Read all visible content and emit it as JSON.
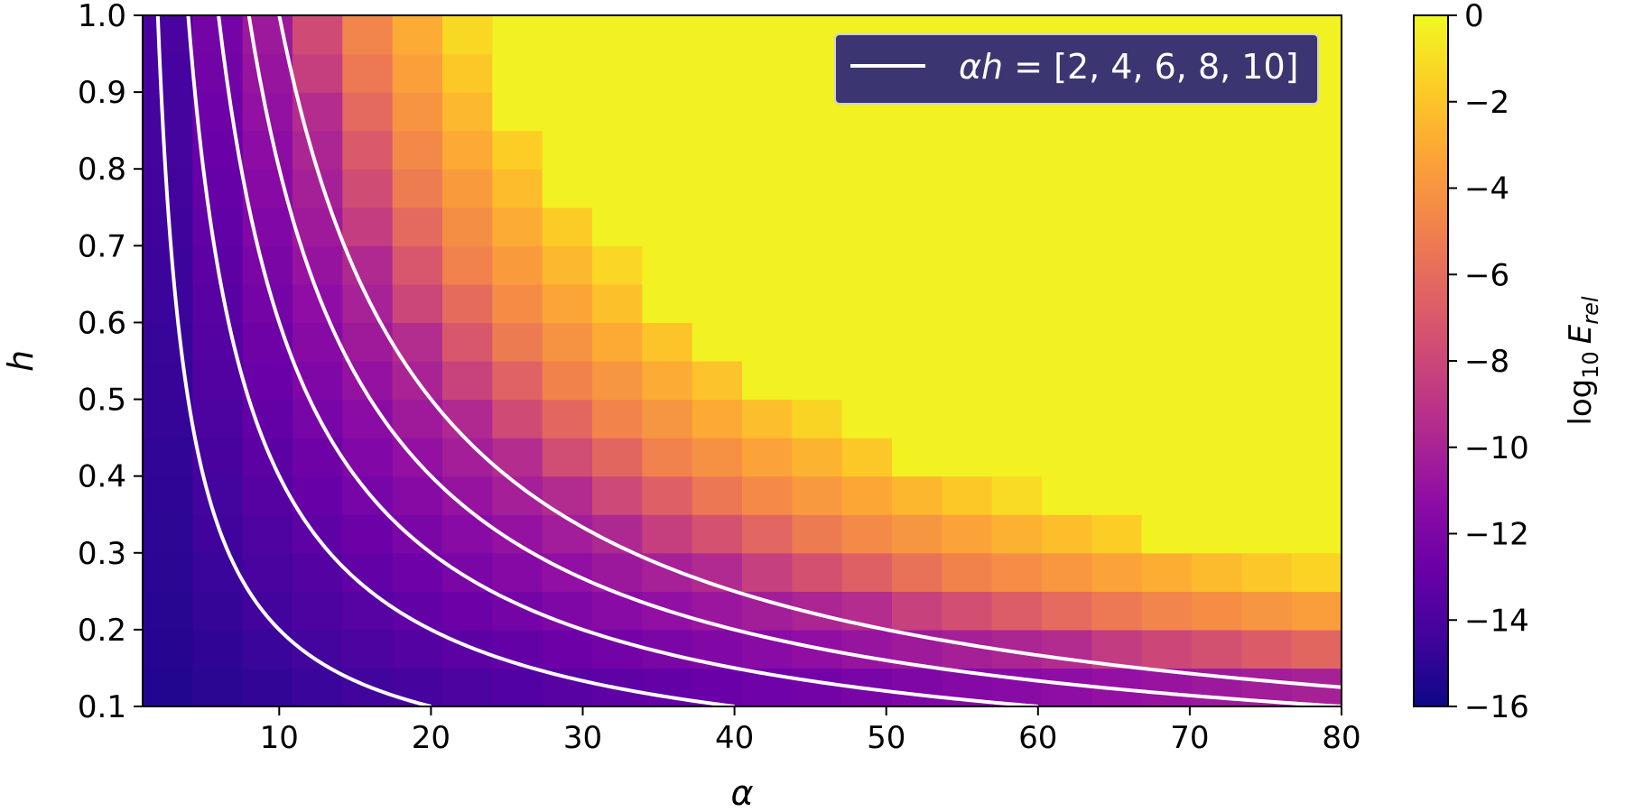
{
  "chart_data": {
    "type": "heatmap",
    "xlabel": "α",
    "ylabel": "h",
    "xlim": [
      1,
      80
    ],
    "ylim": [
      0.1,
      1.0
    ],
    "x_ticks": [
      10,
      20,
      30,
      40,
      50,
      60,
      70,
      80
    ],
    "x_tick_labels": [
      "10",
      "20",
      "30",
      "40",
      "50",
      "60",
      "70",
      "80"
    ],
    "y_ticks": [
      0.1,
      0.2,
      0.3,
      0.4,
      0.5,
      0.6,
      0.7,
      0.8,
      0.9,
      1.0
    ],
    "y_tick_labels": [
      "0.1",
      "0.2",
      "0.3",
      "0.4",
      "0.5",
      "0.6",
      "0.7",
      "0.8",
      "0.9",
      "1.0"
    ],
    "colorbar": {
      "label": "log10 E_rel",
      "label_main": "log",
      "label_sub": "10",
      "label_var": "E",
      "label_var_sub": "rel",
      "colormap": "plasma",
      "range": [
        -16,
        0
      ],
      "ticks": [
        0,
        -2,
        -4,
        -6,
        -8,
        -10,
        -12,
        -14,
        -16
      ],
      "tick_labels": [
        "0",
        "−2",
        "−4",
        "−6",
        "−8",
        "−10",
        "−12",
        "−14",
        "−16"
      ]
    },
    "grid": {
      "alpha_cells": 24,
      "h_cells": 18,
      "alpha_range": [
        1,
        80
      ],
      "h_range": [
        0.1,
        1.0
      ],
      "description": "log10 relative error, near −15 for small alpha·h, rising to ~−9 near alpha·h ≈ 10, sharp jump to orange/yellow (−6 to 0) for larger alpha·h"
    },
    "contours": {
      "alpha_h_values": [
        2,
        4,
        6,
        8,
        10
      ],
      "color": "#ffffff"
    },
    "legend": {
      "label_prefix": "αh",
      "label_rest": " = [2, 4, 6, 8, 10]",
      "placement": "upper-right",
      "background": "#3b3571"
    }
  }
}
